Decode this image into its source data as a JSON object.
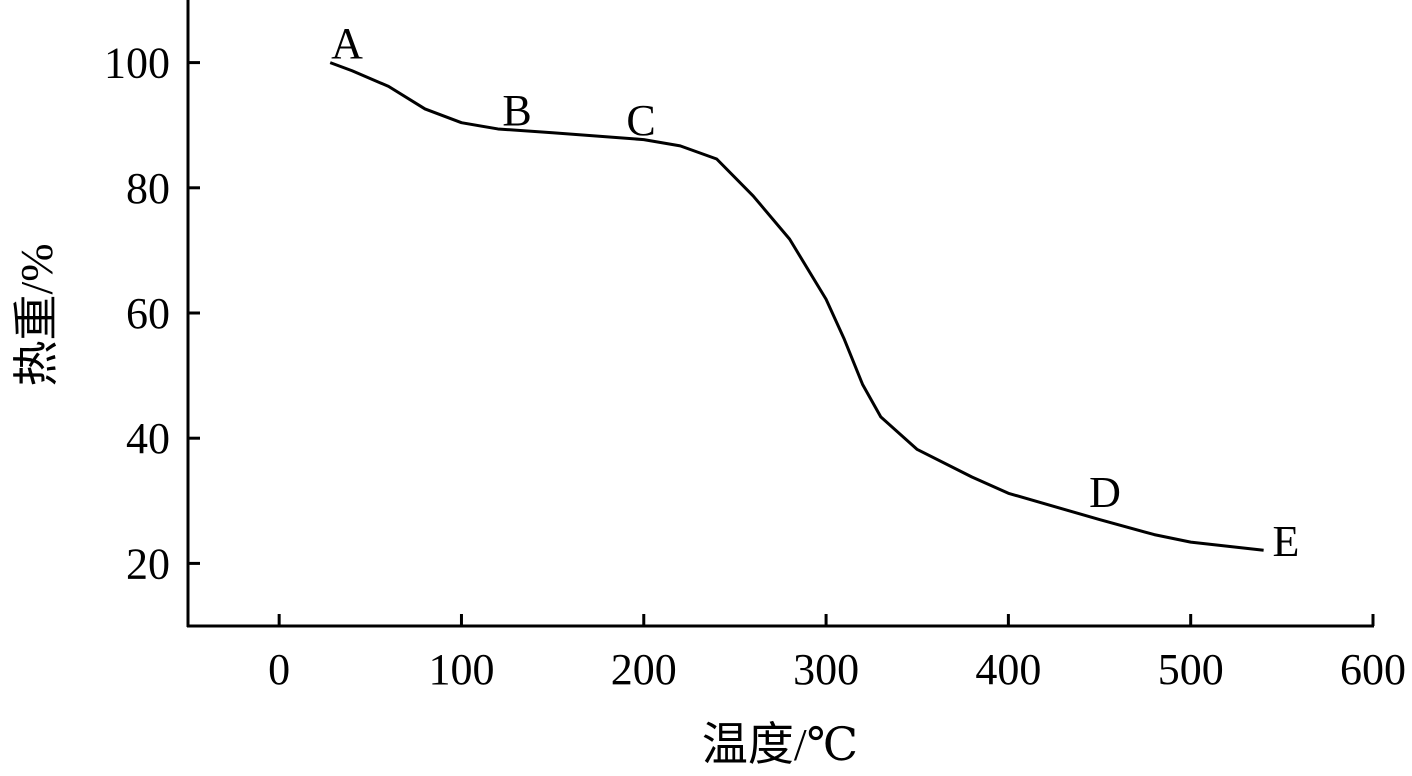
{
  "chart_data": {
    "type": "line",
    "x_label": "温度/℃",
    "y_label": "热重/%",
    "x": [
      28,
      40,
      60,
      80,
      100,
      120,
      150,
      200,
      220,
      240,
      260,
      280,
      300,
      310,
      320,
      330,
      350,
      380,
      400,
      450,
      480,
      500,
      540
    ],
    "series": [
      {
        "color": "#000000",
        "values": [
          100,
          98.7,
          96.2,
          92.6,
          90.4,
          89.4,
          88.8,
          87.7,
          86.7,
          84.6,
          78.7,
          71.8,
          62.2,
          55.8,
          48.6,
          43.4,
          38.2,
          33.8,
          31.2,
          27.0,
          24.6,
          23.4,
          22.1
        ]
      }
    ],
    "annotations": [
      "A",
      "B",
      "C",
      "D",
      "E"
    ],
    "xlim": [
      -50,
      600
    ],
    "xticks": [
      0,
      100,
      200,
      300,
      400,
      500,
      600
    ],
    "ylim": [
      10,
      110
    ],
    "yticks": [
      20,
      40,
      60,
      80,
      100
    ]
  }
}
